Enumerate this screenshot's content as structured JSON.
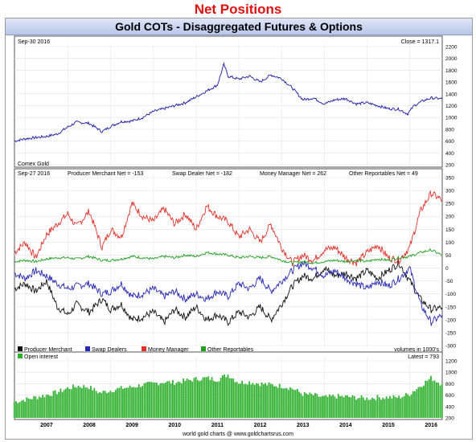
{
  "page_title": "Net Positions",
  "banner_title": "Gold COTs - Disaggregated Futures & Options",
  "footer_credit": "world gold charts @ www.goldchartsrus.com",
  "x_axis": {
    "range": [
      2006.75,
      2016.76
    ],
    "year_labels": [
      "2007",
      "2008",
      "2009",
      "2010",
      "2011",
      "2012",
      "2013",
      "2014",
      "2015",
      "2016"
    ]
  },
  "colors": {
    "gold_price": "#1a1aa8",
    "producer_merchant": "#111111",
    "swap_dealers": "#2727b5",
    "money_manager": "#e0302a",
    "other_reportables": "#1d9e1d",
    "open_interest": "#2fb12f"
  },
  "chart_data": [
    {
      "type": "line",
      "panel": "gold_price",
      "date_label": "Sep-30  2016",
      "close_label": "Close = 1317.1",
      "source_label": "Comex Gold",
      "ylim": [
        200,
        2200
      ],
      "yticks": [
        200,
        400,
        600,
        800,
        1000,
        1200,
        1400,
        1600,
        1800,
        2000,
        2200
      ],
      "series": [
        {
          "x": [
            2006.75,
            2007.0,
            2007.25,
            2007.5,
            2007.75,
            2008.0,
            2008.2,
            2008.5,
            2008.8,
            2009.0,
            2009.25,
            2009.5,
            2009.75,
            2010.0,
            2010.25,
            2010.5,
            2010.75,
            2011.0,
            2011.25,
            2011.5,
            2011.65,
            2011.75,
            2012.0,
            2012.25,
            2012.5,
            2012.75,
            2013.0,
            2013.25,
            2013.5,
            2013.75,
            2014.0,
            2014.25,
            2014.5,
            2014.75,
            2015.0,
            2015.25,
            2015.5,
            2015.75,
            2015.95,
            2016.1,
            2016.3,
            2016.5,
            2016.76
          ],
          "values": [
            600,
            640,
            660,
            680,
            720,
            840,
            920,
            900,
            760,
            850,
            930,
            940,
            1000,
            1100,
            1150,
            1200,
            1250,
            1350,
            1450,
            1550,
            1900,
            1700,
            1650,
            1700,
            1600,
            1720,
            1660,
            1500,
            1300,
            1330,
            1230,
            1300,
            1320,
            1230,
            1250,
            1200,
            1150,
            1140,
            1060,
            1200,
            1280,
            1330,
            1317
          ]
        }
      ]
    },
    {
      "type": "line",
      "panel": "net_positions",
      "date_label": "Sep-27  2016",
      "ylim": [
        -300,
        350
      ],
      "yticks": [
        -300,
        -250,
        -200,
        -150,
        -100,
        -50,
        0,
        50,
        100,
        150,
        200,
        250,
        300,
        350
      ],
      "series": [
        {
          "name": "Producer Merchant",
          "header_label": "Producer Merchant Net = -153",
          "x": [
            2006.75,
            2007.0,
            2007.25,
            2007.5,
            2007.75,
            2008.0,
            2008.2,
            2008.5,
            2008.8,
            2009.0,
            2009.25,
            2009.5,
            2009.75,
            2010.0,
            2010.25,
            2010.5,
            2010.75,
            2011.0,
            2011.25,
            2011.5,
            2011.75,
            2012.0,
            2012.25,
            2012.5,
            2012.75,
            2013.0,
            2013.25,
            2013.5,
            2013.75,
            2014.0,
            2014.25,
            2014.5,
            2014.75,
            2015.0,
            2015.25,
            2015.5,
            2015.75,
            2016.0,
            2016.25,
            2016.5,
            2016.76
          ],
          "values": [
            -80,
            -60,
            -90,
            -50,
            -150,
            -180,
            -140,
            -170,
            -120,
            -160,
            -140,
            -200,
            -190,
            -170,
            -210,
            -160,
            -190,
            -150,
            -200,
            -180,
            -210,
            -170,
            -190,
            -150,
            -200,
            -140,
            -70,
            -30,
            -40,
            0,
            -30,
            -20,
            -40,
            -10,
            -40,
            -10,
            20,
            -50,
            -120,
            -160,
            -153
          ]
        },
        {
          "name": "Swap Dealers",
          "header_label": "Swap Dealer Net = -182",
          "x": [
            2006.75,
            2007.0,
            2007.25,
            2007.5,
            2007.75,
            2008.0,
            2008.2,
            2008.5,
            2008.8,
            2009.0,
            2009.25,
            2009.5,
            2009.75,
            2010.0,
            2010.25,
            2010.5,
            2010.75,
            2011.0,
            2011.25,
            2011.5,
            2011.75,
            2012.0,
            2012.25,
            2012.5,
            2012.75,
            2013.0,
            2013.25,
            2013.5,
            2013.75,
            2014.0,
            2014.25,
            2014.5,
            2014.75,
            2015.0,
            2015.25,
            2015.5,
            2015.75,
            2016.0,
            2016.25,
            2016.5,
            2016.76
          ],
          "values": [
            -20,
            -40,
            -10,
            -30,
            -60,
            -80,
            -70,
            -60,
            -100,
            -90,
            -60,
            -110,
            -100,
            -80,
            -110,
            -90,
            -120,
            -100,
            -120,
            -90,
            -110,
            -60,
            -80,
            -40,
            -90,
            -50,
            -10,
            20,
            0,
            -30,
            -10,
            -40,
            -60,
            -80,
            -50,
            -70,
            -40,
            0,
            -140,
            -210,
            -182
          ]
        },
        {
          "name": "Money Manager",
          "header_label": "Money Manager Net = 262",
          "x": [
            2006.75,
            2007.0,
            2007.25,
            2007.5,
            2007.75,
            2008.0,
            2008.2,
            2008.5,
            2008.8,
            2009.0,
            2009.25,
            2009.5,
            2009.75,
            2010.0,
            2010.25,
            2010.5,
            2010.75,
            2011.0,
            2011.25,
            2011.5,
            2011.75,
            2012.0,
            2012.25,
            2012.5,
            2012.75,
            2013.0,
            2013.25,
            2013.5,
            2013.75,
            2014.0,
            2014.25,
            2014.5,
            2014.75,
            2015.0,
            2015.25,
            2015.5,
            2015.75,
            2016.0,
            2016.25,
            2016.5,
            2016.76
          ],
          "values": [
            60,
            100,
            40,
            130,
            170,
            210,
            160,
            220,
            80,
            150,
            120,
            250,
            200,
            180,
            230,
            170,
            210,
            150,
            240,
            200,
            180,
            120,
            150,
            100,
            170,
            80,
            20,
            50,
            30,
            70,
            80,
            40,
            20,
            60,
            90,
            40,
            30,
            80,
            220,
            290,
            262
          ]
        },
        {
          "name": "Other Reportables",
          "header_label": "Other Reportables Net = 49",
          "x": [
            2006.75,
            2007.0,
            2007.25,
            2007.5,
            2007.75,
            2008.0,
            2008.2,
            2008.5,
            2008.8,
            2009.0,
            2009.25,
            2009.5,
            2009.75,
            2010.0,
            2010.25,
            2010.5,
            2010.75,
            2011.0,
            2011.25,
            2011.5,
            2011.75,
            2012.0,
            2012.25,
            2012.5,
            2012.75,
            2013.0,
            2013.25,
            2013.5,
            2013.75,
            2014.0,
            2014.25,
            2014.5,
            2014.75,
            2015.0,
            2015.25,
            2015.5,
            2015.75,
            2016.0,
            2016.25,
            2016.5,
            2016.76
          ],
          "values": [
            25,
            30,
            25,
            35,
            40,
            40,
            35,
            45,
            30,
            30,
            35,
            45,
            40,
            35,
            45,
            40,
            50,
            45,
            60,
            55,
            50,
            40,
            45,
            40,
            45,
            30,
            20,
            25,
            20,
            25,
            30,
            25,
            30,
            25,
            35,
            30,
            40,
            45,
            60,
            70,
            49
          ]
        }
      ]
    },
    {
      "type": "bar",
      "panel": "open_interest",
      "legend_label": "Open interest",
      "latest_label": "Latest = 793",
      "units_label": "volumes in 1000's",
      "ylim": [
        200,
        1200
      ],
      "yticks": [
        200,
        400,
        600,
        800,
        1000,
        1200
      ],
      "x": [
        2006.75,
        2007.0,
        2007.25,
        2007.5,
        2007.75,
        2008.0,
        2008.25,
        2008.5,
        2008.75,
        2009.0,
        2009.25,
        2009.5,
        2009.75,
        2010.0,
        2010.25,
        2010.5,
        2010.75,
        2011.0,
        2011.25,
        2011.5,
        2011.75,
        2012.0,
        2012.25,
        2012.5,
        2012.75,
        2013.0,
        2013.25,
        2013.5,
        2013.75,
        2014.0,
        2014.25,
        2014.5,
        2014.75,
        2015.0,
        2015.25,
        2015.5,
        2015.75,
        2016.0,
        2016.25,
        2016.5,
        2016.76
      ],
      "values": [
        480,
        520,
        560,
        600,
        650,
        720,
        760,
        740,
        640,
        680,
        720,
        740,
        780,
        800,
        830,
        820,
        850,
        880,
        900,
        870,
        960,
        820,
        830,
        800,
        780,
        760,
        720,
        620,
        600,
        560,
        580,
        570,
        560,
        540,
        560,
        560,
        560,
        620,
        760,
        900,
        793
      ]
    }
  ],
  "legend": [
    {
      "label": "Producer Merchant"
    },
    {
      "label": "Swap Dealers"
    },
    {
      "label": "Money Manager"
    },
    {
      "label": "Other Reportables"
    }
  ]
}
